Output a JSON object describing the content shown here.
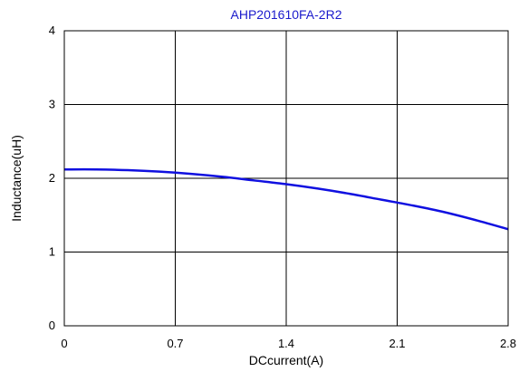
{
  "chart_data": {
    "type": "line",
    "title": "AHP201610FA-2R2",
    "xlabel": "DCcurrent(A)",
    "ylabel": "Inductance(uH)",
    "xlim": [
      0,
      2.8
    ],
    "ylim": [
      0,
      4
    ],
    "x_ticks": [
      "0",
      "0.7",
      "1.4",
      "2.1",
      "2.8"
    ],
    "y_ticks": [
      "0",
      "1",
      "2",
      "3",
      "4"
    ],
    "grid": true,
    "legend": "none",
    "colors": {
      "series": "#1010e0",
      "title": "#1a1acc",
      "grid": "#000000"
    },
    "series": [
      {
        "x": [
          0,
          0.2,
          0.4,
          0.6,
          0.8,
          1.0,
          1.2,
          1.4,
          1.6,
          1.8,
          2.0,
          2.2,
          2.4,
          2.6,
          2.8
        ],
        "values": [
          2.12,
          2.12,
          2.11,
          2.09,
          2.06,
          2.02,
          1.97,
          1.92,
          1.86,
          1.79,
          1.71,
          1.63,
          1.54,
          1.43,
          1.31
        ]
      }
    ]
  }
}
